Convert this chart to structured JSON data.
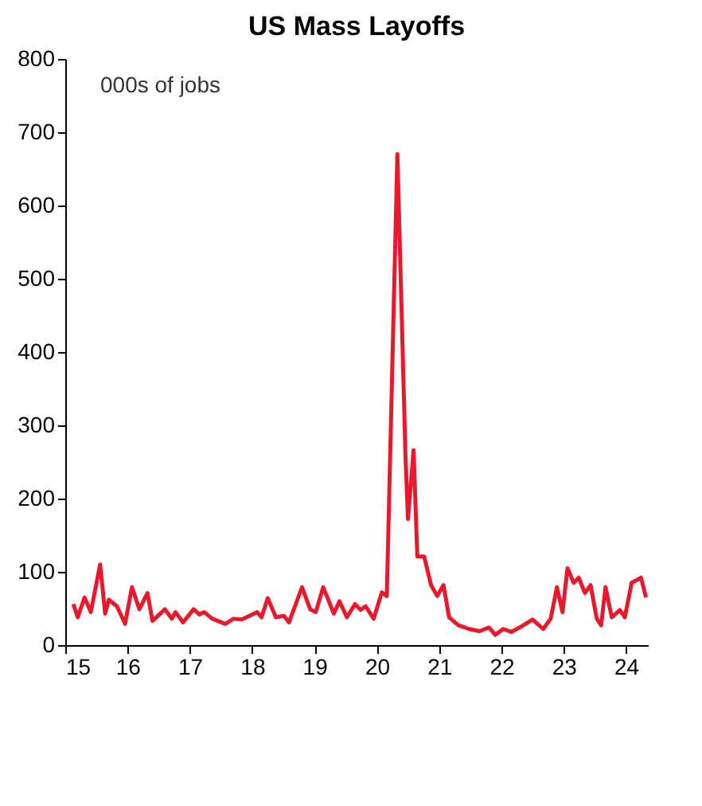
{
  "chart_data": {
    "type": "line",
    "title": "US Mass Layoffs",
    "annotations": [
      "000s of jobs"
    ],
    "x": [
      15.13,
      15.2,
      15.31,
      15.41,
      15.56,
      15.64,
      15.7,
      15.83,
      15.96,
      16.07,
      16.19,
      16.32,
      16.4,
      16.6,
      16.71,
      16.77,
      16.89,
      17.06,
      17.15,
      17.23,
      17.36,
      17.57,
      17.7,
      17.83,
      17.91,
      18.08,
      18.15,
      18.25,
      18.38,
      18.51,
      18.59,
      18.8,
      18.93,
      19.02,
      19.14,
      19.31,
      19.4,
      19.52,
      19.65,
      19.74,
      19.82,
      19.95,
      20.08,
      20.16,
      20.33,
      20.46,
      20.5,
      20.59,
      20.65,
      20.76,
      20.87,
      20.97,
      21.07,
      21.16,
      21.31,
      21.48,
      21.65,
      21.8,
      21.9,
      22.03,
      22.16,
      22.33,
      22.5,
      22.67,
      22.79,
      22.89,
      22.98,
      23.06,
      23.16,
      23.24,
      23.34,
      23.43,
      23.53,
      23.6,
      23.67,
      23.77,
      23.9,
      23.98,
      24.09,
      24.24,
      24.32
    ],
    "series": [
      {
        "color": "#e8192c",
        "values": [
          56,
          38,
          65,
          45,
          110,
          43,
          62,
          53,
          29,
          79,
          49,
          71,
          33,
          49,
          36,
          45,
          31,
          49,
          42,
          45,
          36,
          29,
          36,
          35,
          38,
          45,
          38,
          64,
          38,
          40,
          31,
          79,
          49,
          45,
          79,
          43,
          60,
          38,
          56,
          48,
          53,
          36,
          72,
          67,
          670,
          258,
          172,
          266,
          121,
          121,
          82,
          67,
          82,
          38,
          27,
          22,
          19,
          24,
          14,
          22,
          18,
          26,
          35,
          22,
          36,
          79,
          45,
          105,
          85,
          92,
          71,
          82,
          36,
          27,
          79,
          38,
          48,
          38,
          85,
          92,
          65
        ]
      }
    ],
    "xlim": [
      15,
      24.35
    ],
    "xticks": [
      15,
      16,
      17,
      18,
      19,
      20,
      21,
      22,
      23,
      24
    ],
    "ylim": [
      0,
      800
    ],
    "yticks": [
      0,
      100,
      200,
      300,
      400,
      500,
      600,
      700,
      800
    ],
    "grid": false,
    "line_style": "solid",
    "marker": "none"
  }
}
